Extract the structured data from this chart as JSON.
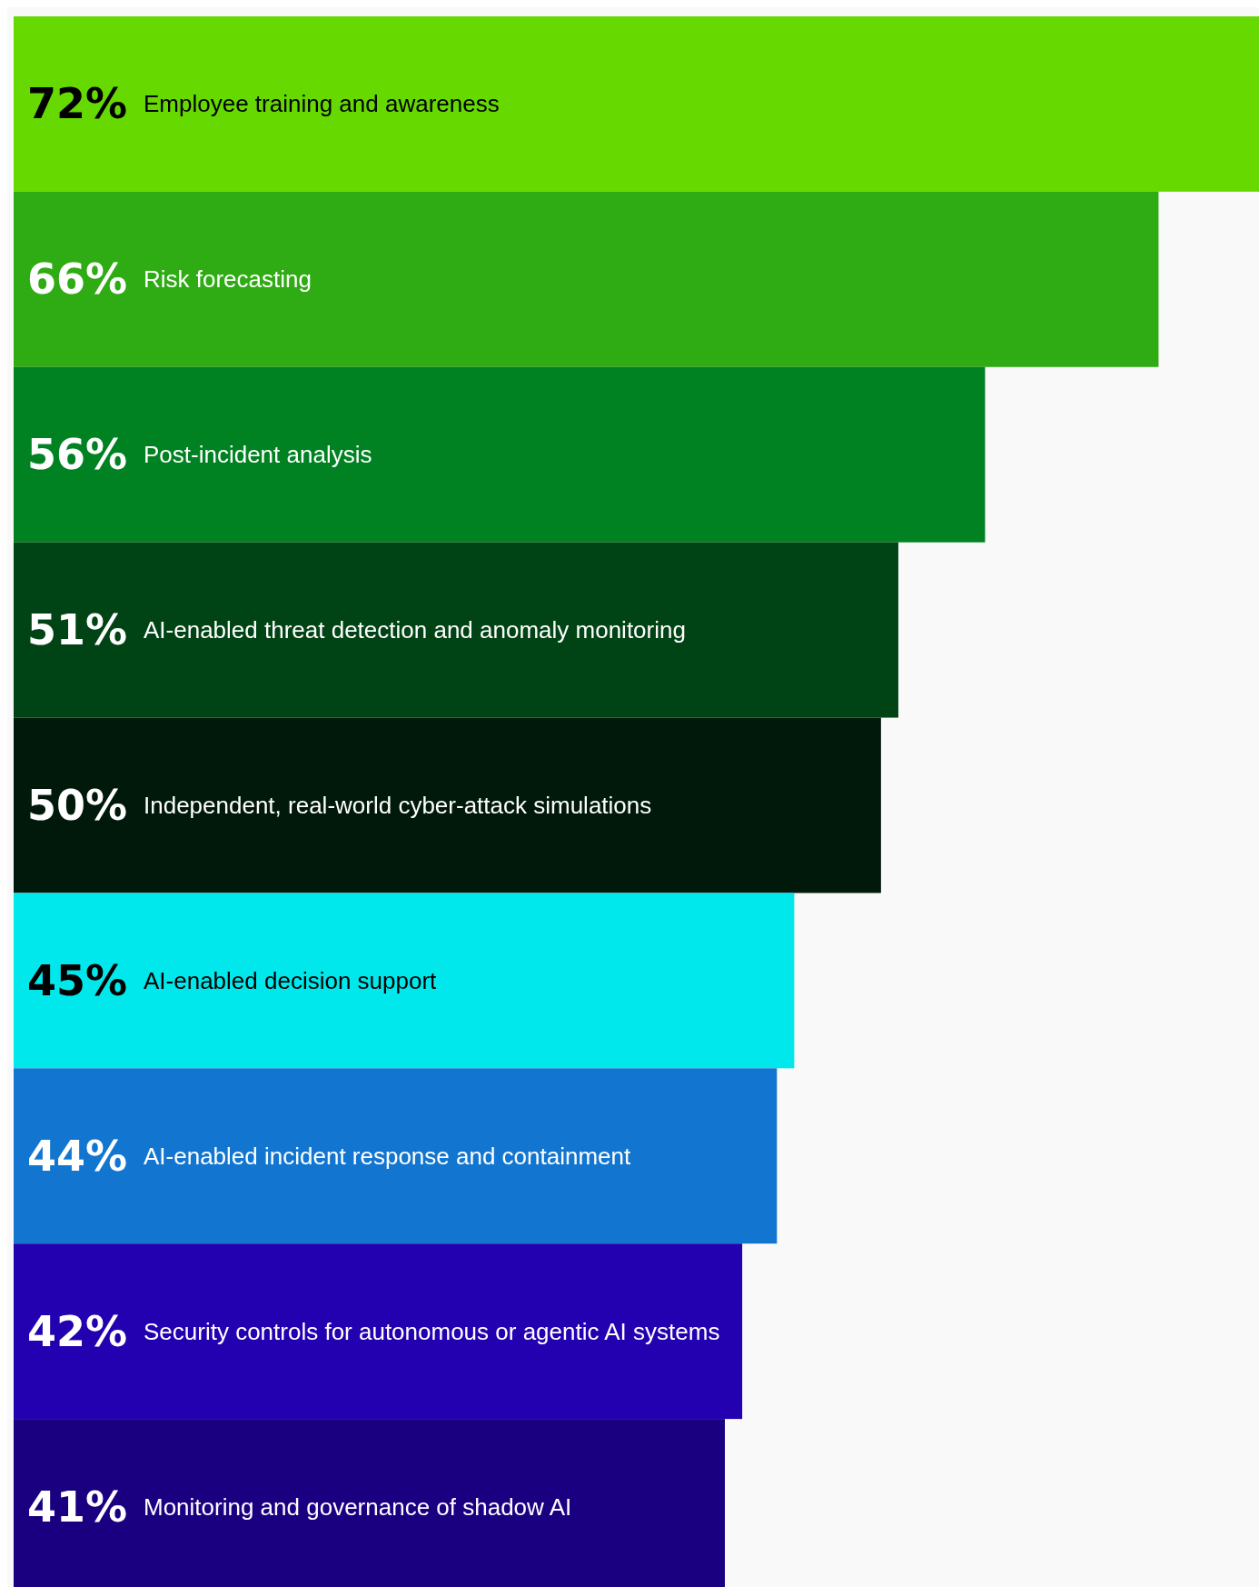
{
  "chart_data": {
    "type": "bar",
    "orientation": "horizontal",
    "categories": [
      "Employee training and awareness",
      "Risk forecasting",
      "Post-incident analysis",
      "AI-enabled threat detection and anomaly monitoring",
      "Independent, real-world cyber-attack simulations",
      "AI-enabled decision support",
      "AI-enabled incident response and containment",
      "Security controls for autonomous or agentic AI systems",
      "Monitoring and governance of shadow AI"
    ],
    "values": [
      72,
      66,
      56,
      51,
      50,
      45,
      44,
      42,
      41
    ],
    "value_labels": [
      "72%",
      "66%",
      "56%",
      "51%",
      "50%",
      "45%",
      "44%",
      "42%",
      "41%"
    ],
    "colors": [
      "#66d900",
      "#2fab14",
      "#008222",
      "#004314",
      "#00190a",
      "#00e8ec",
      "#1276d0",
      "#2300b0",
      "#1a0080"
    ]
  }
}
